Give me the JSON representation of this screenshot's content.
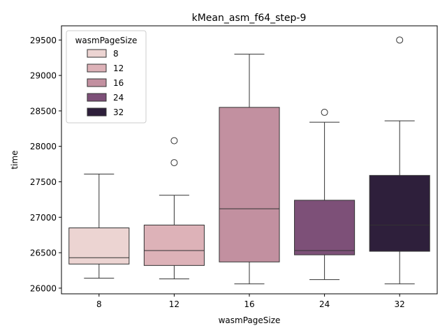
{
  "chart_data": {
    "type": "box",
    "title": "kMean_asm_f64_step-9",
    "xlabel": "wasmPageSize",
    "ylabel": "time",
    "ylim": [
      25920,
      29700
    ],
    "yticks": [
      26000,
      26500,
      27000,
      27500,
      28000,
      28500,
      29000,
      29500
    ],
    "grid": false,
    "legend": {
      "title": "wasmPageSize",
      "position": "top-left"
    },
    "categories": [
      "8",
      "12",
      "16",
      "24",
      "32"
    ],
    "boxes": [
      {
        "name": "8",
        "color": "#ecd4d2",
        "whisker_low": 26140,
        "q1": 26340,
        "median": 26430,
        "q3": 26850,
        "whisker_high": 27610,
        "outliers": []
      },
      {
        "name": "12",
        "color": "#ddb2b8",
        "whisker_low": 26130,
        "q1": 26320,
        "median": 26530,
        "q3": 26890,
        "whisker_high": 27310,
        "outliers": [
          27770,
          28080
        ]
      },
      {
        "name": "16",
        "color": "#c290a0",
        "whisker_low": 26060,
        "q1": 26370,
        "median": 27120,
        "q3": 28550,
        "whisker_high": 29300,
        "outliers": []
      },
      {
        "name": "24",
        "color": "#7d5078",
        "whisker_low": 26120,
        "q1": 26470,
        "median": 26530,
        "q3": 27240,
        "whisker_high": 28340,
        "outliers": [
          28480
        ]
      },
      {
        "name": "32",
        "color": "#2e1f3b",
        "whisker_low": 26060,
        "q1": 26520,
        "median": 26890,
        "q3": 27590,
        "whisker_high": 28360,
        "outliers": [
          29500
        ]
      }
    ]
  }
}
